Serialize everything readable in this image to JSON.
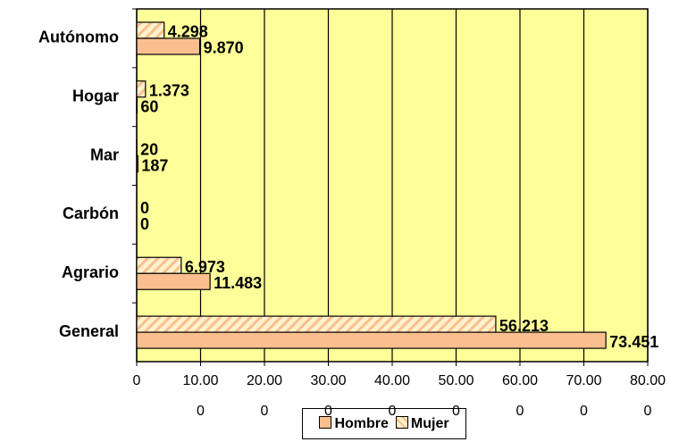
{
  "chart_data": {
    "type": "bar",
    "orientation": "horizontal",
    "categories": [
      "Autónomo",
      "Hogar",
      "Mar",
      "Carbón",
      "Agrario",
      "General"
    ],
    "series": [
      {
        "name": "Hombre",
        "color": "#fbbf8f",
        "values": [
          9870,
          60,
          187,
          0,
          11483,
          73451
        ],
        "value_labels": [
          "9.870",
          "60",
          "187",
          "0",
          "11.483",
          "73.451"
        ]
      },
      {
        "name": "Mujer",
        "color": "#fff2cc",
        "hatch": true,
        "values": [
          4298,
          1373,
          20,
          0,
          6973,
          56213
        ],
        "value_labels": [
          "4.298",
          "1.373",
          "20",
          "0",
          "6.973",
          "56.213"
        ]
      }
    ],
    "xlim": [
      0,
      80000
    ],
    "xticks": [
      0,
      {
        "value": 10000,
        "label": "10.000"
      },
      {
        "value": 20000,
        "label": "20.000"
      },
      {
        "value": 30000,
        "label": "30.000"
      },
      {
        "value": 40000,
        "label": "40.000"
      },
      {
        "value": 50000,
        "label": "50.000"
      },
      {
        "value": 60000,
        "label": "60.000"
      },
      {
        "value": 70000,
        "label": "70.000"
      },
      {
        "value": 80000,
        "label": "80.000"
      }
    ],
    "grid": true,
    "plot_background": "#ffff99",
    "legend": "bottom"
  }
}
